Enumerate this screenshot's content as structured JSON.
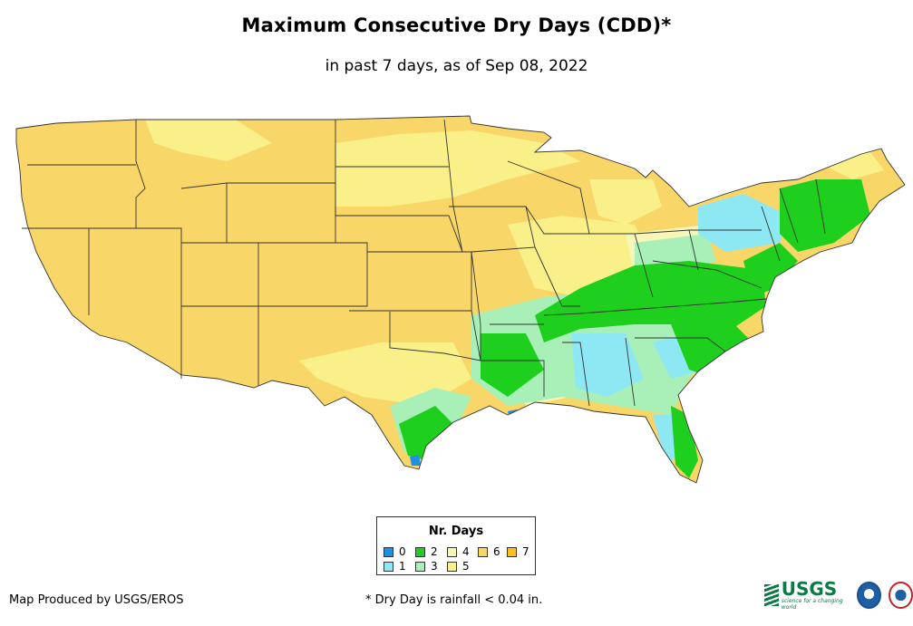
{
  "title": "Maximum Consecutive Dry Days (CDD)*",
  "subtitle": "in past 7 days, as of Sep 08, 2022",
  "legend": {
    "title": "Nr. Days",
    "items": [
      {
        "label": "0",
        "color": "#1e90e8"
      },
      {
        "label": "1",
        "color": "#8ee8f4"
      },
      {
        "label": "2",
        "color": "#1ecf1e"
      },
      {
        "label": "3",
        "color": "#a8f0b8"
      },
      {
        "label": "4",
        "color": "#f6f6b8"
      },
      {
        "label": "5",
        "color": "#faf08a"
      },
      {
        "label": "6",
        "color": "#f8d668"
      },
      {
        "label": "7",
        "color": "#f8c020"
      }
    ]
  },
  "footer": {
    "producer": "Map Produced by USGS/EROS",
    "note": "* Dry Day is rainfall < 0.04 in."
  },
  "logos": {
    "usgs": "USGS",
    "usgs_tagline": "science for a changing world",
    "noaa": "noaa",
    "nws": "NWS"
  },
  "colors": {
    "state_border": "#333333",
    "background": "#ffffff"
  }
}
